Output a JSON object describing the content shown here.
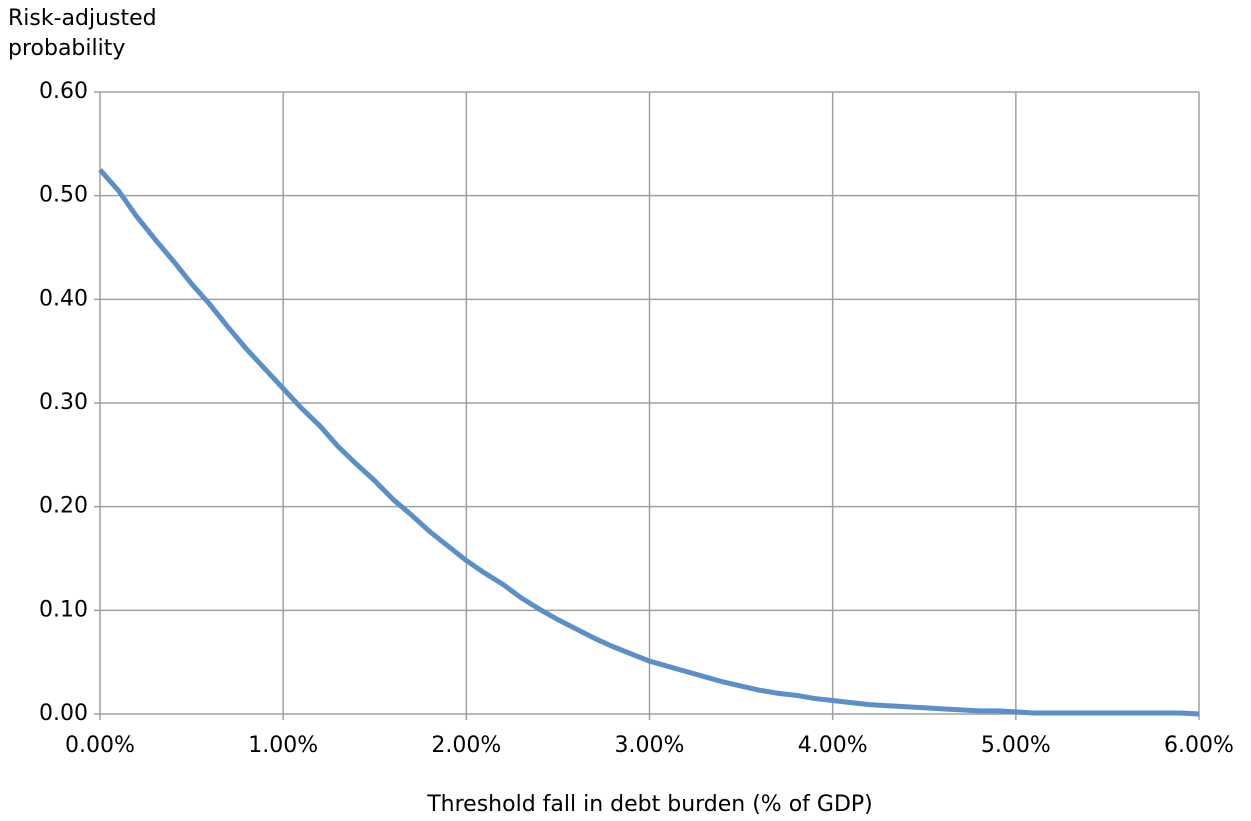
{
  "chart_data": {
    "type": "line",
    "xlabel": "Threshold fall in debt burden (% of GDP)",
    "ylabel": "Risk-adjusted probability",
    "x": [
      0,
      0.1,
      0.2,
      0.3,
      0.4,
      0.5,
      0.6,
      0.7,
      0.8,
      0.9,
      1.0,
      1.1,
      1.2,
      1.3,
      1.4,
      1.5,
      1.6,
      1.7,
      1.8,
      1.9,
      2.0,
      2.1,
      2.2,
      2.3,
      2.4,
      2.5,
      2.6,
      2.7,
      2.8,
      2.9,
      3.0,
      3.1,
      3.2,
      3.3,
      3.4,
      3.5,
      3.6,
      3.7,
      3.8,
      3.9,
      4.0,
      4.1,
      4.2,
      4.3,
      4.4,
      4.5,
      4.6,
      4.7,
      4.8,
      4.9,
      5.0,
      5.1,
      5.2,
      5.3,
      5.4,
      5.5,
      5.6,
      5.7,
      5.8,
      5.9,
      6.0
    ],
    "series": [
      {
        "color": "#5b8fc9",
        "values": [
          0.525,
          0.505,
          0.48,
          0.458,
          0.437,
          0.415,
          0.395,
          0.373,
          0.352,
          0.333,
          0.314,
          0.295,
          0.278,
          0.258,
          0.241,
          0.225,
          0.207,
          0.192,
          0.176,
          0.162,
          0.148,
          0.136,
          0.125,
          0.112,
          0.101,
          0.091,
          0.082,
          0.073,
          0.065,
          0.058,
          0.051,
          0.046,
          0.041,
          0.036,
          0.031,
          0.027,
          0.023,
          0.02,
          0.018,
          0.015,
          0.013,
          0.011,
          0.009,
          0.008,
          0.007,
          0.006,
          0.005,
          0.004,
          0.003,
          0.003,
          0.002,
          0.001,
          0.001,
          0.001,
          0.001,
          0.001,
          0.001,
          0.001,
          0.001,
          0.001,
          0
        ]
      }
    ],
    "xlim": [
      0,
      6
    ],
    "xticks": [
      {
        "value": 0,
        "label": "0.00%"
      },
      {
        "value": 1,
        "label": "1.00%"
      },
      {
        "value": 2,
        "label": "2.00%"
      },
      {
        "value": 3,
        "label": "3.00%"
      },
      {
        "value": 4,
        "label": "4.00%"
      },
      {
        "value": 5,
        "label": "5.00%"
      },
      {
        "value": 6,
        "label": "6.00%"
      }
    ],
    "ylim": [
      0,
      0.6
    ],
    "yticks": [
      {
        "value": 0,
        "label": "0.00"
      },
      {
        "value": 0.1,
        "label": "0.10"
      },
      {
        "value": 0.2,
        "label": "0.20"
      },
      {
        "value": 0.3,
        "label": "0.30"
      },
      {
        "value": 0.4,
        "label": "0.40"
      },
      {
        "value": 0.5,
        "label": "0.50"
      },
      {
        "value": 0.6,
        "label": "0.60"
      }
    ],
    "grid": true
  }
}
